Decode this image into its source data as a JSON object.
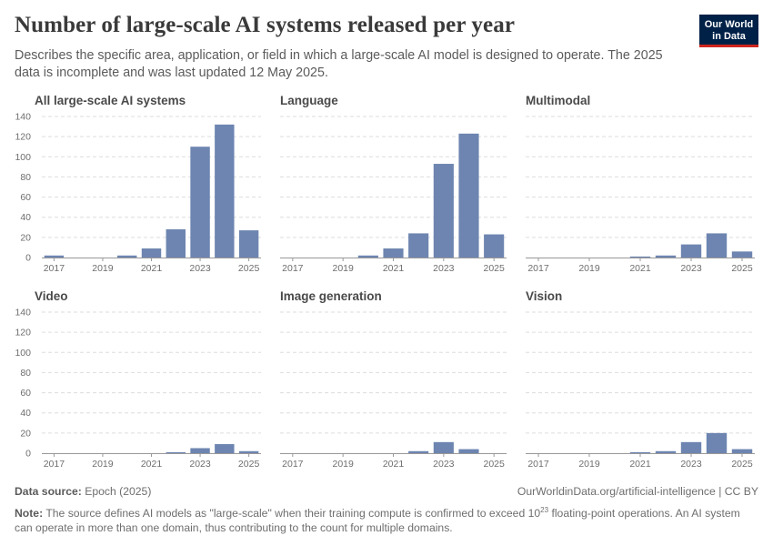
{
  "header": {
    "title": "Number of large-scale AI systems released per year",
    "subtitle": "Describes the specific area, application, or field in which a large-scale AI model is designed to operate. The 2025 data is incomplete and was last updated 12 May 2025.",
    "logo_line1": "Our World",
    "logo_line2": "in Data"
  },
  "colors": {
    "bar": "#6d85b0",
    "grid": "#dddddd",
    "axis": "#999999"
  },
  "chart_data": [
    {
      "type": "bar",
      "title": "All large-scale AI systems",
      "categories": [
        2017,
        2018,
        2019,
        2020,
        2021,
        2022,
        2023,
        2024,
        2025
      ],
      "values": [
        2,
        0,
        0,
        2,
        9,
        28,
        110,
        132,
        27
      ],
      "ylim": [
        0,
        140
      ],
      "yticks": [
        0,
        20,
        40,
        60,
        80,
        100,
        120,
        140
      ],
      "xticks": [
        2017,
        2019,
        2021,
        2023,
        2025
      ]
    },
    {
      "type": "bar",
      "title": "Language",
      "categories": [
        2017,
        2018,
        2019,
        2020,
        2021,
        2022,
        2023,
        2024,
        2025
      ],
      "values": [
        0,
        0,
        0,
        2,
        9,
        24,
        93,
        123,
        23
      ],
      "ylim": [
        0,
        140
      ],
      "yticks": [
        0,
        20,
        40,
        60,
        80,
        100,
        120,
        140
      ],
      "xticks": [
        2017,
        2019,
        2021,
        2023,
        2025
      ]
    },
    {
      "type": "bar",
      "title": "Multimodal",
      "categories": [
        2017,
        2018,
        2019,
        2020,
        2021,
        2022,
        2023,
        2024,
        2025
      ],
      "values": [
        0,
        0,
        0,
        0,
        1,
        2,
        13,
        24,
        6
      ],
      "ylim": [
        0,
        140
      ],
      "yticks": [
        0,
        20,
        40,
        60,
        80,
        100,
        120,
        140
      ],
      "xticks": [
        2017,
        2019,
        2021,
        2023,
        2025
      ]
    },
    {
      "type": "bar",
      "title": "Video",
      "categories": [
        2017,
        2018,
        2019,
        2020,
        2021,
        2022,
        2023,
        2024,
        2025
      ],
      "values": [
        0,
        0,
        0,
        0,
        0,
        1,
        5,
        9,
        2
      ],
      "ylim": [
        0,
        140
      ],
      "yticks": [
        0,
        20,
        40,
        60,
        80,
        100,
        120,
        140
      ],
      "xticks": [
        2017,
        2019,
        2021,
        2023,
        2025
      ]
    },
    {
      "type": "bar",
      "title": "Image generation",
      "categories": [
        2017,
        2018,
        2019,
        2020,
        2021,
        2022,
        2023,
        2024,
        2025
      ],
      "values": [
        0,
        0,
        0,
        0,
        0,
        2,
        11,
        4,
        0
      ],
      "ylim": [
        0,
        140
      ],
      "yticks": [
        0,
        20,
        40,
        60,
        80,
        100,
        120,
        140
      ],
      "xticks": [
        2017,
        2019,
        2021,
        2023,
        2025
      ]
    },
    {
      "type": "bar",
      "title": "Vision",
      "categories": [
        2017,
        2018,
        2019,
        2020,
        2021,
        2022,
        2023,
        2024,
        2025
      ],
      "values": [
        0,
        0,
        0,
        0,
        1,
        2,
        11,
        20,
        4
      ],
      "ylim": [
        0,
        140
      ],
      "yticks": [
        0,
        20,
        40,
        60,
        80,
        100,
        120,
        140
      ],
      "xticks": [
        2017,
        2019,
        2021,
        2023,
        2025
      ]
    }
  ],
  "footer": {
    "source_label": "Data source:",
    "source_text": "Epoch (2025)",
    "url": "OurWorldinData.org/artificial-intelligence | CC BY",
    "note_label": "Note:",
    "note_text_a": "The source defines AI models as \"large-scale\" when their training compute is confirmed to exceed 10",
    "note_sup": "23",
    "note_text_b": " floating-point operations. An AI system can operate in more than one domain, thus contributing to the count for multiple domains."
  }
}
